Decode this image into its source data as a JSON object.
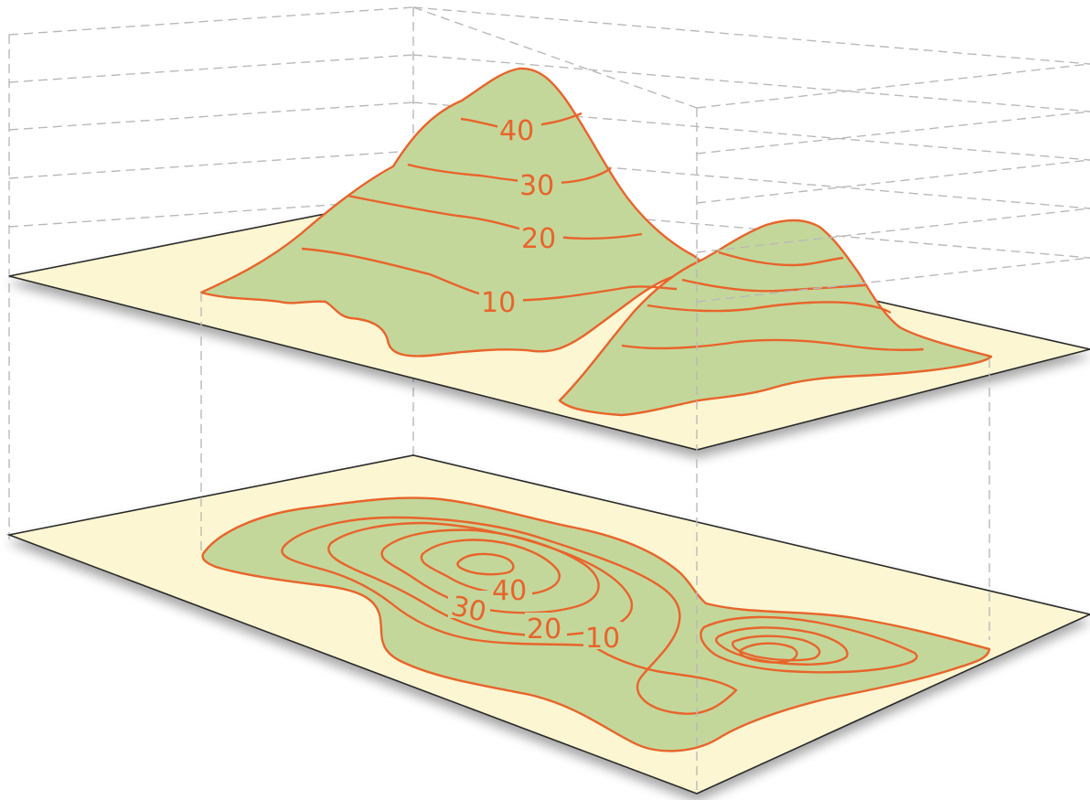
{
  "colors": {
    "background": "#ffffff",
    "plane_fill": "#fdf6d2",
    "plane_edge": "#2b2b2b",
    "land_fill": "#c4d79b",
    "contour_line": "#e8642b",
    "label_text": "#e8642b",
    "guide_line": "#b9b9b9"
  },
  "terrain_model": {
    "labels": {
      "c40": "40",
      "c30": "30",
      "c20": "20",
      "c10": "10"
    }
  },
  "contour_map": {
    "labels": {
      "c40": "40",
      "c30": "30",
      "c20": "20",
      "c10": "10"
    }
  }
}
